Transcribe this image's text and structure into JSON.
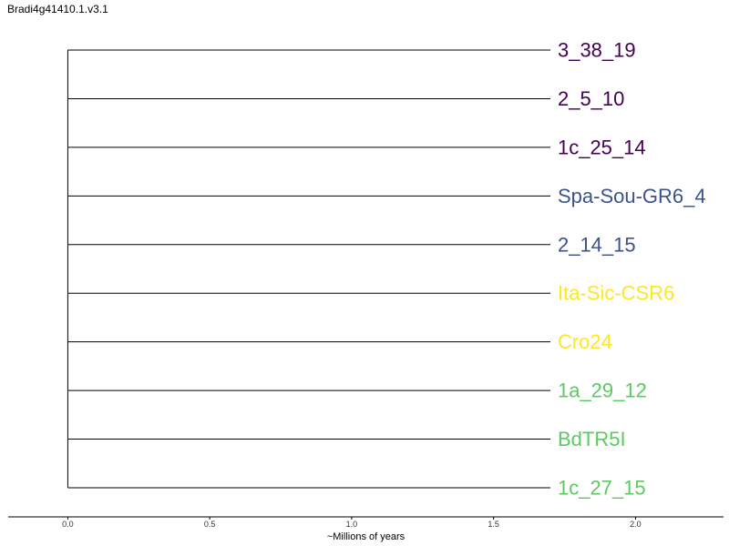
{
  "title": "Bradi4g41410.1.v3.1",
  "chart_data": {
    "type": "dendrogram",
    "xlabel": "~Millions of years",
    "xticks": [
      "0.0",
      "0.5",
      "1.0",
      "1.5",
      "2.0"
    ],
    "xtick_values": [
      0.0,
      0.5,
      1.0,
      1.5,
      2.0
    ],
    "xlim": [
      -0.21,
      2.31
    ],
    "root_age": 0.0,
    "branch_length": 1.7,
    "leaves": [
      {
        "label": "3_38_19",
        "color": "#440154"
      },
      {
        "label": "2_5_10",
        "color": "#440154"
      },
      {
        "label": "1c_25_14",
        "color": "#440154"
      },
      {
        "label": "Spa-Sou-GR6_4",
        "color": "#3b528b"
      },
      {
        "label": "2_14_15",
        "color": "#3b528b"
      },
      {
        "label": "Ita-Sic-CSR6",
        "color": "#fde725"
      },
      {
        "label": "Cro24",
        "color": "#fde725"
      },
      {
        "label": "1a_29_12",
        "color": "#5ec962"
      },
      {
        "label": "BdTR5I",
        "color": "#5ec962"
      },
      {
        "label": "1c_27_15",
        "color": "#5ec962"
      }
    ]
  }
}
